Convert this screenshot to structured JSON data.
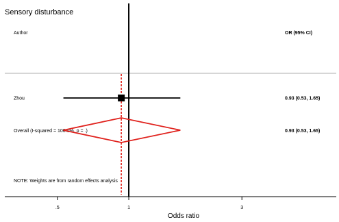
{
  "chart_data": {
    "type": "forest",
    "title": "Sensory disturbance",
    "header_left": "Author",
    "header_right": "OR (95% CI)",
    "xlabel": "Odds ratio",
    "scale": "log",
    "xlim": [
      0.3,
      7.5
    ],
    "xticks": [
      {
        "value": 0.5,
        "label": ".5"
      },
      {
        "value": 1,
        "label": "1"
      },
      {
        "value": 3,
        "label": "3"
      }
    ],
    "null_line": 1,
    "studies": [
      {
        "name": "Zhou",
        "or": 0.93,
        "lower": 0.53,
        "upper": 1.65,
        "ci_text": "0.93 (0.53, 1.65)"
      }
    ],
    "overall": {
      "label": "Overall  (I-squared = 100.0%, p = .)",
      "or": 0.93,
      "lower": 0.53,
      "upper": 1.65,
      "ci_text": "0.93 (0.53, 1.65)"
    },
    "note": "NOTE: Weights are from random effects analysis",
    "colors": {
      "diamond": "#e0201b",
      "overall_line": "#e0201b",
      "separator": "#bdbdbd",
      "ink": "#000000"
    }
  }
}
